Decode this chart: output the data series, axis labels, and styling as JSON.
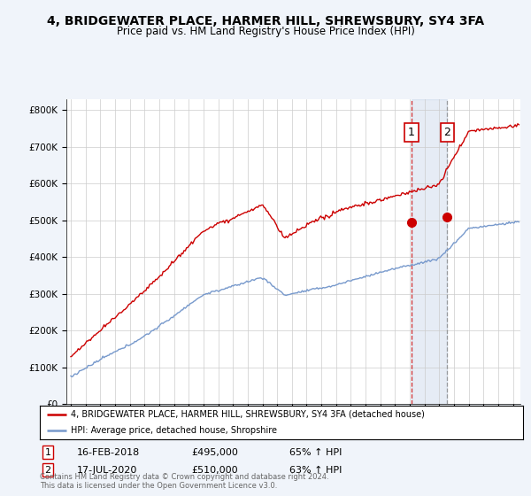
{
  "title": "4, BRIDGEWATER PLACE, HARMER HILL, SHREWSBURY, SY4 3FA",
  "subtitle": "Price paid vs. HM Land Registry's House Price Index (HPI)",
  "ylabel_ticks": [
    "£0",
    "£100K",
    "£200K",
    "£300K",
    "£400K",
    "£500K",
    "£600K",
    "£700K",
    "£800K"
  ],
  "ytick_values": [
    0,
    100000,
    200000,
    300000,
    400000,
    500000,
    600000,
    700000,
    800000
  ],
  "ylim": [
    0,
    830000
  ],
  "xlim_start": 1994.7,
  "xlim_end": 2025.5,
  "hpi_color": "#7799cc",
  "price_color": "#cc0000",
  "marker1_x": 2018.12,
  "marker1_y": 495000,
  "marker2_x": 2020.54,
  "marker2_y": 510000,
  "vline1_x": 2018.12,
  "vline2_x": 2020.54,
  "legend_line1": "4, BRIDGEWATER PLACE, HARMER HILL, SHREWSBURY, SY4 3FA (detached house)",
  "legend_line2": "HPI: Average price, detached house, Shropshire",
  "sale1_label": "1",
  "sale1_date": "16-FEB-2018",
  "sale1_price": "£495,000",
  "sale1_hpi": "65% ↑ HPI",
  "sale2_label": "2",
  "sale2_date": "17-JUL-2020",
  "sale2_price": "£510,000",
  "sale2_hpi": "63% ↑ HPI",
  "footnote": "Contains HM Land Registry data © Crown copyright and database right 2024.\nThis data is licensed under the Open Government Licence v3.0.",
  "background_color": "#f0f4fa",
  "plot_bg_color": "#ffffff",
  "grid_color": "#cccccc"
}
